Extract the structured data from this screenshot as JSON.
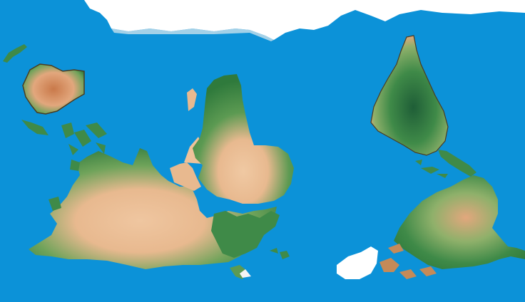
{
  "map": {
    "projection": "equirectangular",
    "orientation": "south-up",
    "colors": {
      "ocean": "#0c92d8",
      "ice": "#ffffff",
      "lowland": "#2f7a3c",
      "midland": "#6fa35a",
      "desert": "#e8b98f",
      "highland": "#c9794a",
      "shadow": "#4a3b22"
    },
    "regions": [
      {
        "name": "antarctica"
      },
      {
        "name": "australia"
      },
      {
        "name": "new-zealand"
      },
      {
        "name": "maritime-southeast-asia"
      },
      {
        "name": "asia"
      },
      {
        "name": "india"
      },
      {
        "name": "arabia"
      },
      {
        "name": "africa"
      },
      {
        "name": "madagascar"
      },
      {
        "name": "europe"
      },
      {
        "name": "british-isles"
      },
      {
        "name": "scandinavia"
      },
      {
        "name": "south-america"
      },
      {
        "name": "central-america"
      },
      {
        "name": "caribbean"
      },
      {
        "name": "north-america"
      },
      {
        "name": "canadian-arctic-archipelago"
      },
      {
        "name": "greenland"
      }
    ]
  }
}
